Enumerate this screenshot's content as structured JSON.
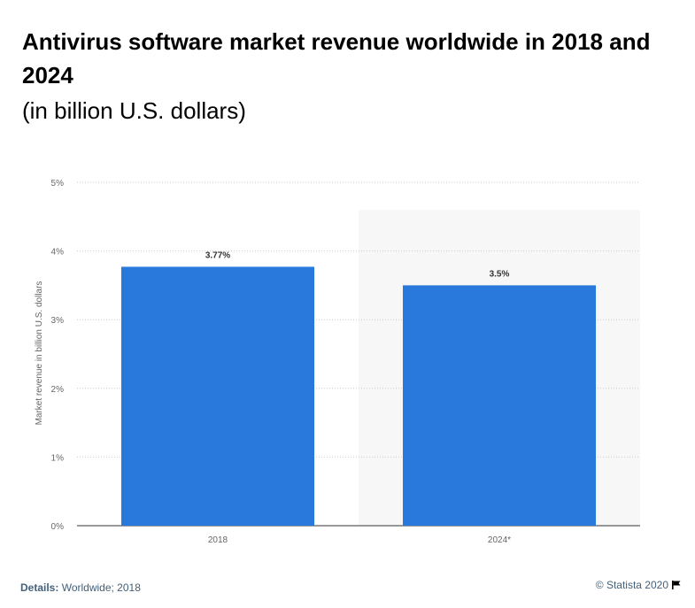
{
  "chart_data": {
    "type": "bar",
    "title": "Antivirus software market revenue worldwide in 2018 and 2024",
    "subtitle": "(in billion U.S. dollars)",
    "categories": [
      "2018",
      "2024*"
    ],
    "values": [
      3.77,
      3.5
    ],
    "data_labels": [
      "3.77%",
      "3.5%"
    ],
    "ylabel": "Market revenue in billion U.S. dollars",
    "ylim": [
      0,
      5
    ],
    "yticks": [
      {
        "value": 0,
        "label": "0%"
      },
      {
        "value": 1,
        "label": "1%"
      },
      {
        "value": 2,
        "label": "2%"
      },
      {
        "value": 3,
        "label": "3%"
      },
      {
        "value": 4,
        "label": "4%"
      },
      {
        "value": 5,
        "label": "5%"
      }
    ],
    "grid": true,
    "forecast_category": "2024*",
    "colors": {
      "bar": "#2979dd",
      "forecast_band": "#f7f7f7",
      "grid": "#cccccc"
    }
  },
  "footer": {
    "details_label": "Details:",
    "details_value": "Worldwide; 2018",
    "credit": "© Statista 2020"
  }
}
